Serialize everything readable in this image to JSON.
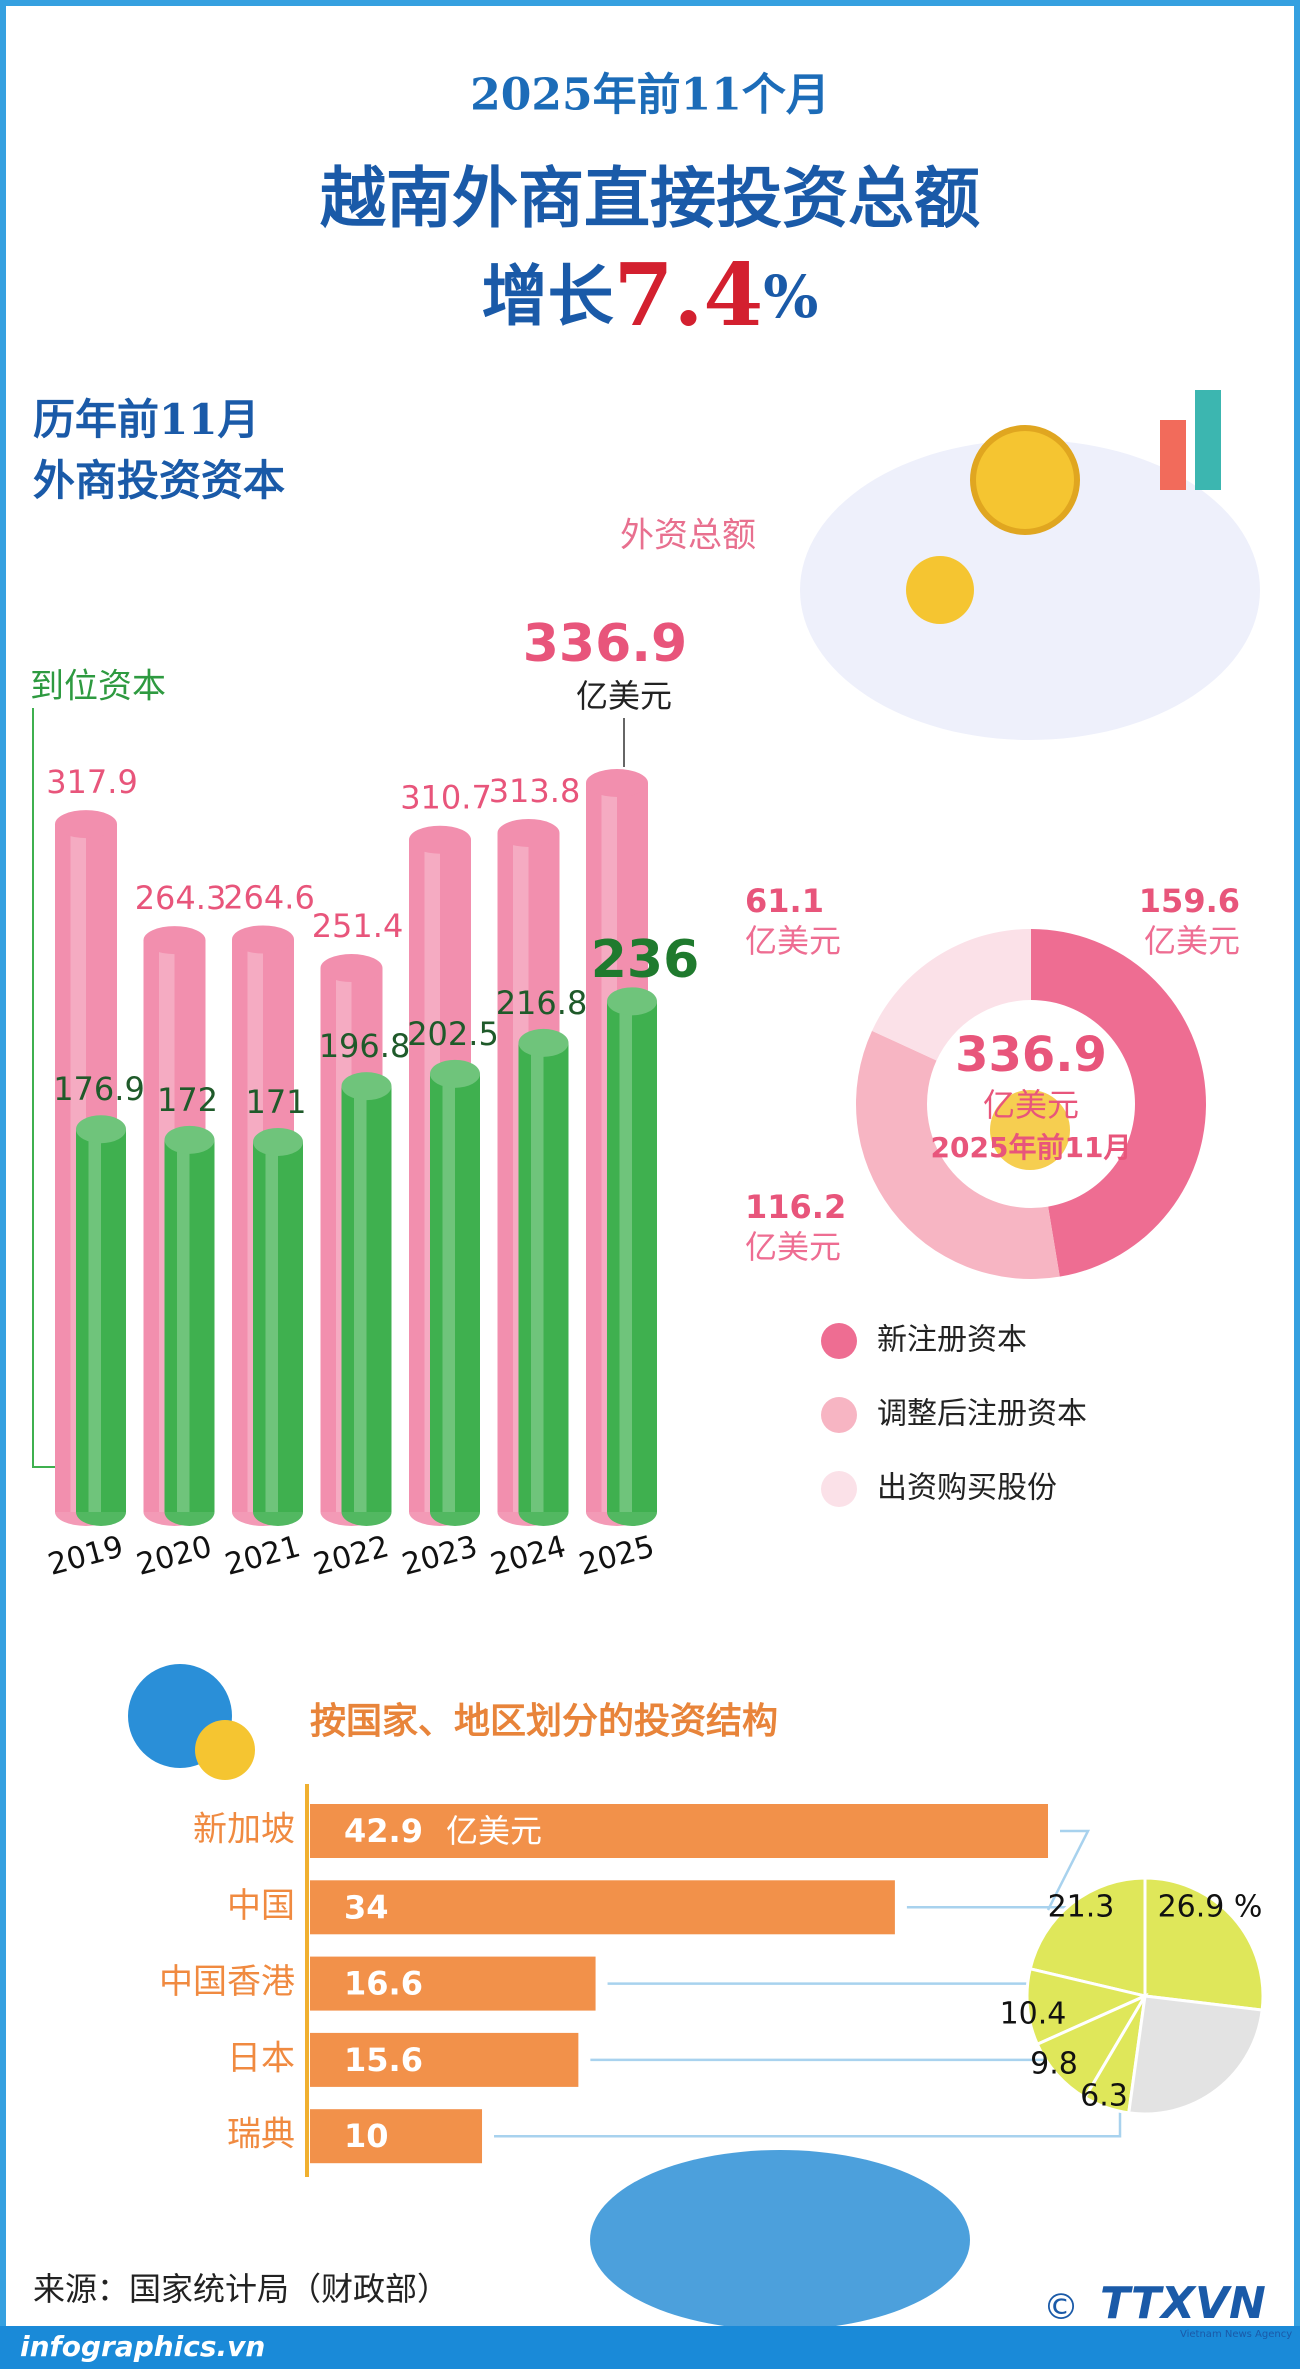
{
  "header": {
    "line1": "2025年前11个月",
    "line2": "越南外商直接投资总额",
    "growth_label": "增长",
    "growth_value": 7.4,
    "growth_unit": "%"
  },
  "chart_data": [
    {
      "type": "cylinder-bar",
      "title": [
        "历年前11月",
        "外商投资资本"
      ],
      "unit": "亿美元",
      "categories": [
        "2019",
        "2020",
        "2021",
        "2022",
        "2023",
        "2024",
        "2025"
      ],
      "series": [
        {
          "name": "外资总额",
          "color": "#f28fae",
          "values": [
            317.9,
            264.3,
            264.6,
            251.4,
            310.7,
            313.8,
            336.9
          ]
        },
        {
          "name": "到位资本",
          "color": "#3fb04f",
          "values": [
            176.9,
            172,
            171,
            196.8,
            202.5,
            216.8,
            236
          ]
        }
      ]
    },
    {
      "type": "donut",
      "total": 336.9,
      "unit": "亿美元",
      "center_label": "2025年前11月",
      "categories": [
        "新注册资本",
        "调整后注册资本",
        "出资购买股份"
      ],
      "values": [
        159.6,
        116.2,
        61.1
      ],
      "colors": [
        "#ee6d92",
        "#f7b5c3",
        "#fbe1e8"
      ]
    },
    {
      "type": "hbar",
      "title": "按国家、地区划分的投资结构",
      "unit": "亿美元",
      "categories": [
        "新加坡",
        "中国",
        "中国香港",
        "日本",
        "瑞典"
      ],
      "values": [
        42.9,
        34,
        16.6,
        15.6,
        10
      ],
      "color": "#f2914a"
    },
    {
      "type": "pie",
      "values": [
        26.9,
        21.3,
        10.4,
        9.8,
        6.3,
        25.3
      ],
      "value_labels": [
        "26.9 %",
        "21.3",
        "10.4",
        "9.8",
        "6.3",
        null
      ],
      "colors": [
        "#dfe75a",
        "#dfe75a",
        "#dfe75a",
        "#dfe75a",
        "#dfe75a",
        "#e3e3e3"
      ]
    }
  ],
  "footer": {
    "source": "来源：国家统计局（财政部）",
    "site": "infographics.vn",
    "copyright": "©",
    "logo": "TTXVN",
    "agency": "Vietnam News Agency"
  }
}
